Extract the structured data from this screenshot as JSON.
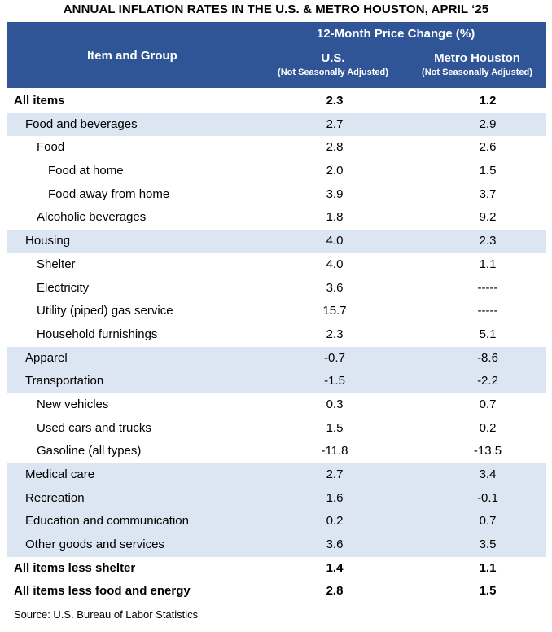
{
  "title": "ANNUAL INFLATION RATES IN THE U.S. & METRO HOUSTON, APRIL ‘25",
  "header": {
    "group_label": "Item and Group",
    "span_label": "12-Month Price Change (%)",
    "col_us": "U.S.",
    "col_us_sub": "(Not Seasonally Adjusted)",
    "col_houston": "Metro Houston",
    "col_houston_sub": "(Not Seasonally Adjusted)"
  },
  "rows": [
    {
      "label": "All items",
      "us": "2.3",
      "houston": "1.2"
    },
    {
      "label": "Food and beverages",
      "us": "2.7",
      "houston": "2.9"
    },
    {
      "label": "Food",
      "us": "2.8",
      "houston": "2.6"
    },
    {
      "label": "Food at home",
      "us": "2.0",
      "houston": "1.5"
    },
    {
      "label": "Food away from home",
      "us": "3.9",
      "houston": "3.7"
    },
    {
      "label": "Alcoholic beverages",
      "us": "1.8",
      "houston": "9.2"
    },
    {
      "label": "Housing",
      "us": "4.0",
      "houston": "2.3"
    },
    {
      "label": "Shelter",
      "us": "4.0",
      "houston": "1.1"
    },
    {
      "label": "Electricity",
      "us": "3.6",
      "houston": "-----"
    },
    {
      "label": "Utility (piped) gas service",
      "us": "15.7",
      "houston": "-----"
    },
    {
      "label": "Household furnishings",
      "us": "2.3",
      "houston": "5.1"
    },
    {
      "label": "Apparel",
      "us": "-0.7",
      "houston": "-8.6"
    },
    {
      "label": "Transportation",
      "us": "-1.5",
      "houston": "-2.2"
    },
    {
      "label": "New vehicles",
      "us": "0.3",
      "houston": "0.7"
    },
    {
      "label": "Used cars and trucks",
      "us": "1.5",
      "houston": "0.2"
    },
    {
      "label": "Gasoline (all types)",
      "us": "-11.8",
      "houston": "-13.5"
    },
    {
      "label": "Medical care",
      "us": "2.7",
      "houston": "3.4"
    },
    {
      "label": "Recreation",
      "us": "1.6",
      "houston": "-0.1"
    },
    {
      "label": "Education and communication",
      "us": "0.2",
      "houston": "0.7"
    },
    {
      "label": "Other goods and services",
      "us": "3.6",
      "houston": "3.5"
    },
    {
      "label": "All items less shelter",
      "us": "1.4",
      "houston": "1.1"
    },
    {
      "label": "All items less food and energy",
      "us": "2.8",
      "houston": "1.5"
    }
  ],
  "source": "Source: U.S. Bureau of Labor Statistics"
}
